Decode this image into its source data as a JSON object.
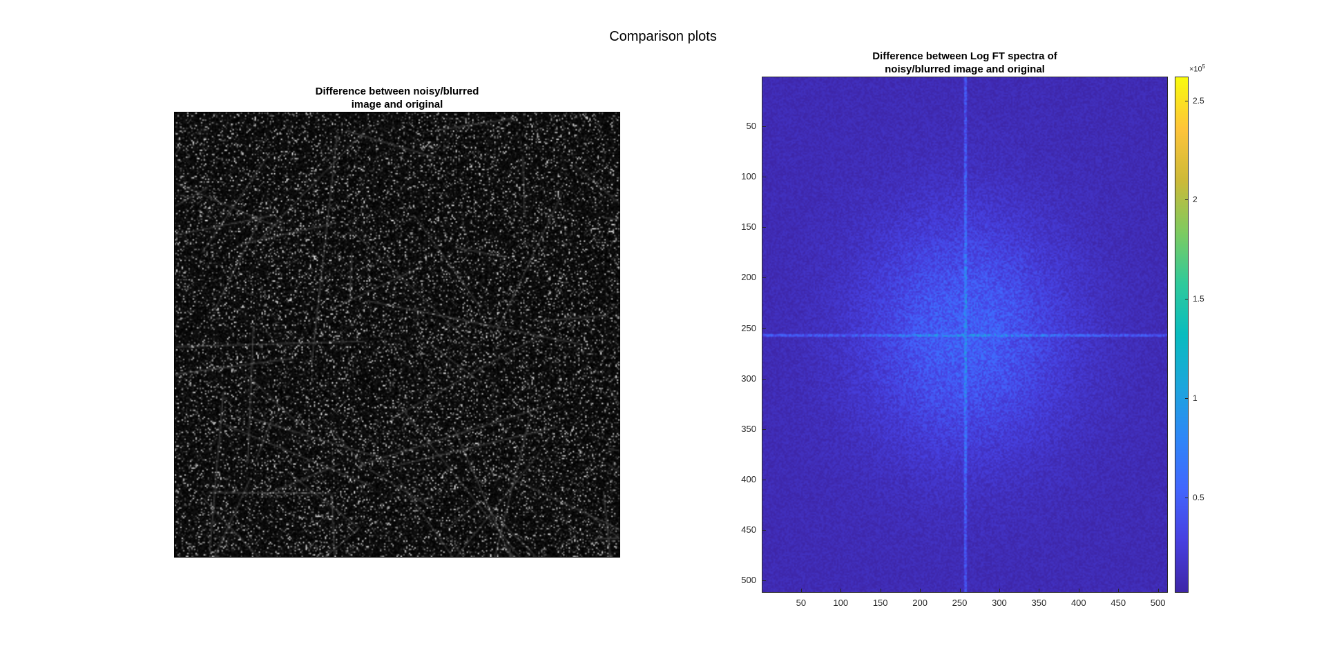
{
  "figure": {
    "title": "Comparison plots"
  },
  "chart_data": [
    {
      "type": "heatmap",
      "title": [
        "Difference between noisy/blurred",
        "image and original"
      ],
      "colormap": "gray",
      "axes_visible": false,
      "image_size": [
        512,
        512
      ],
      "description_values": "absolute pixel difference image of an aerial city photograph (edges bright, mostly near black)"
    },
    {
      "type": "heatmap",
      "title": [
        "Difference between Log FT spectra of",
        "noisy/blurred image and original"
      ],
      "colormap": "parula",
      "x": {
        "ticks": [
          50,
          100,
          150,
          200,
          250,
          300,
          350,
          400,
          450,
          500
        ],
        "range": [
          0.5,
          512.5
        ]
      },
      "y": {
        "ticks": [
          50,
          100,
          150,
          200,
          250,
          300,
          350,
          400,
          450,
          500
        ],
        "range": [
          0.5,
          512.5
        ],
        "direction": "reverse"
      },
      "colorbar": {
        "ticks": [
          0.5,
          1,
          1.5,
          2,
          2.5
        ],
        "tick_labels": [
          "0.5",
          "1",
          "1.5",
          "2",
          "2.5"
        ],
        "exponent_prefix": "×10",
        "exponent": "5",
        "range": [
          0.02,
          2.62
        ]
      },
      "center": [
        257,
        257
      ]
    }
  ],
  "colors": {
    "parula_low": "#3e26a8",
    "parula_mid": "#2e8ef0",
    "parula_high": "#f9fb0e"
  }
}
